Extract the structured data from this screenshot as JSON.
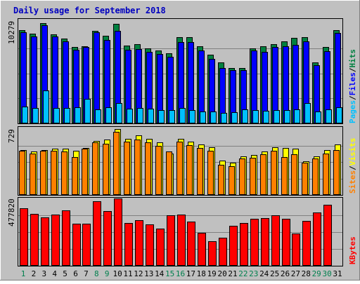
{
  "title": "Daily usage for September 2018",
  "colors": {
    "background": "#c0c0c0",
    "title_text": "#0000c0",
    "hits_bar": "#008040",
    "files_bar": "#0000ff",
    "pages_bar": "#00c0ff",
    "visits_bar": "#ffff00",
    "sites_bar": "#ff8000",
    "kbytes_bar": "#ff0000",
    "weekday_label": "#000000",
    "weekend_label": "#00804e"
  },
  "chart_data": [
    {
      "type": "bar",
      "panel": "hits-files-pages",
      "x": [
        1,
        2,
        3,
        4,
        5,
        6,
        7,
        8,
        9,
        10,
        11,
        12,
        13,
        14,
        15,
        16,
        17,
        18,
        19,
        20,
        21,
        22,
        23,
        24,
        25,
        26,
        27,
        28,
        29,
        30,
        31
      ],
      "y_scale_label": "10279",
      "ylim": [
        0,
        10279
      ],
      "series": [
        {
          "name": "Hits",
          "values": [
            9540,
            9200,
            10279,
            9120,
            8680,
            7840,
            7920,
            9460,
            8950,
            10180,
            7990,
            8130,
            7690,
            7460,
            7200,
            8820,
            8840,
            7940,
            7080,
            6270,
            5700,
            5710,
            7680,
            7890,
            8150,
            8400,
            8770,
            8810,
            6280,
            7870,
            9540
          ]
        },
        {
          "name": "Files",
          "values": [
            9340,
            8920,
            10060,
            8880,
            8400,
            7550,
            7860,
            9320,
            8570,
            9490,
            7540,
            7630,
            7350,
            7130,
            6840,
            8360,
            8360,
            7510,
            6610,
            5710,
            5470,
            5470,
            7480,
            7340,
            7830,
            7930,
            8040,
            8400,
            6000,
            7400,
            9240
          ]
        },
        {
          "name": "Pages",
          "values": [
            1700,
            1580,
            3350,
            1570,
            1610,
            1650,
            2500,
            1420,
            1640,
            2090,
            1530,
            1570,
            1540,
            1340,
            1370,
            1610,
            1390,
            1210,
            1230,
            1080,
            1120,
            1420,
            1340,
            1300,
            1330,
            1390,
            1410,
            2070,
            1220,
            1450,
            1620
          ]
        }
      ]
    },
    {
      "type": "bar",
      "panel": "visits-sites",
      "x": [
        1,
        2,
        3,
        4,
        5,
        6,
        7,
        8,
        9,
        10,
        11,
        12,
        13,
        14,
        15,
        16,
        17,
        18,
        19,
        20,
        21,
        22,
        23,
        24,
        25,
        26,
        27,
        28,
        29,
        30,
        31
      ],
      "y_scale_label": "729",
      "ylim": [
        0,
        729
      ],
      "series": [
        {
          "name": "Visits",
          "values": [
            500,
            480,
            500,
            510,
            510,
            490,
            520,
            600,
            610,
            729,
            620,
            660,
            620,
            580,
            460,
            620,
            590,
            560,
            530,
            380,
            360,
            430,
            440,
            480,
            530,
            520,
            510,
            370,
            430,
            500,
            560
          ]
        },
        {
          "name": "Sites",
          "values": [
            490,
            460,
            490,
            490,
            480,
            420,
            510,
            580,
            570,
            700,
            590,
            610,
            580,
            540,
            480,
            590,
            550,
            520,
            490,
            330,
            320,
            400,
            410,
            450,
            490,
            420,
            450,
            360,
            400,
            460,
            500
          ]
        }
      ]
    },
    {
      "type": "bar",
      "panel": "kbytes",
      "x": [
        1,
        2,
        3,
        4,
        5,
        6,
        7,
        8,
        9,
        10,
        11,
        12,
        13,
        14,
        15,
        16,
        17,
        18,
        19,
        20,
        21,
        22,
        23,
        24,
        25,
        26,
        27,
        28,
        29,
        30,
        31
      ],
      "y_scale_label": "477820",
      "ylim": [
        0,
        477820
      ],
      "series": [
        {
          "name": "KBytes",
          "values": [
            410000,
            370000,
            345000,
            365000,
            395000,
            300000,
            300000,
            460000,
            390000,
            477820,
            305000,
            325000,
            295000,
            265000,
            360000,
            365000,
            315000,
            235000,
            175000,
            200000,
            285000,
            305000,
            335000,
            340000,
            360000,
            335000,
            230000,
            320000,
            380000,
            435000,
            0
          ]
        }
      ]
    }
  ],
  "legend_right": {
    "top": [
      "Pages",
      "/",
      "Files",
      "/",
      "Hits"
    ],
    "middle": [
      "Sites",
      "/",
      "Visits"
    ],
    "bottom": [
      "KBytes"
    ]
  },
  "x_labels": {
    "days": [
      "1",
      "2",
      "3",
      "4",
      "5",
      "6",
      "7",
      "8",
      "9",
      "10",
      "11",
      "12",
      "13",
      "14",
      "15",
      "16",
      "17",
      "18",
      "19",
      "20",
      "21",
      "22",
      "23",
      "24",
      "25",
      "26",
      "27",
      "28",
      "29",
      "30",
      "31"
    ],
    "weekend_days": [
      1,
      8,
      9,
      15,
      16,
      22,
      23,
      29,
      30
    ]
  }
}
